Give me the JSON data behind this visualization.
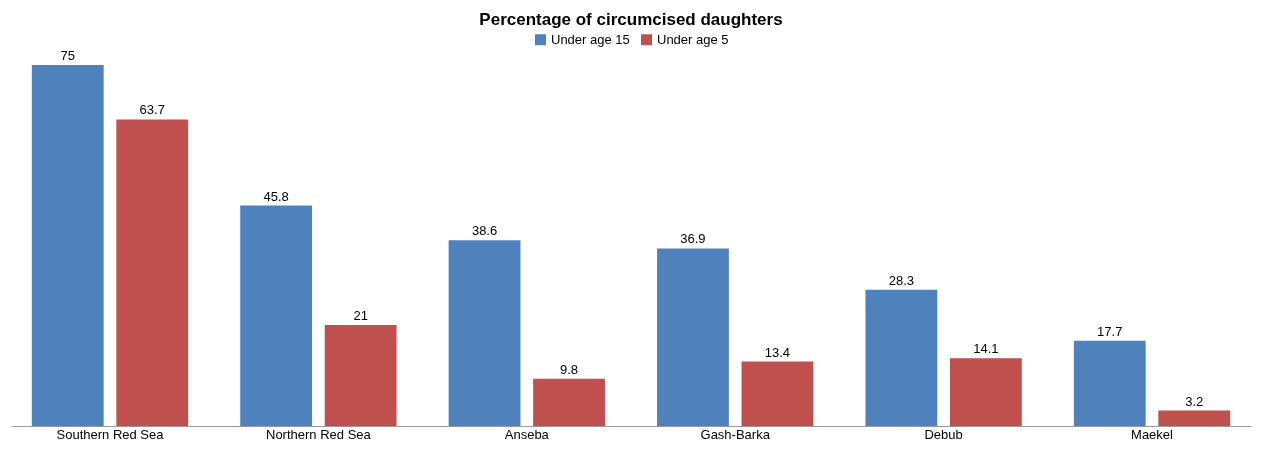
{
  "chart_data": {
    "type": "bar",
    "title": "Percentage of circumcised daughters",
    "categories": [
      "Southern Red Sea",
      "Northern Red Sea",
      "Anseba",
      "Gash-Barka",
      "Debub",
      "Maekel"
    ],
    "series": [
      {
        "name": "Under age 15",
        "color": "#4f81bd",
        "values": [
          75,
          45.8,
          38.6,
          36.9,
          28.3,
          17.7
        ]
      },
      {
        "name": "Under age 5",
        "color": "#c0504d",
        "values": [
          63.7,
          21,
          9.8,
          13.4,
          14.1,
          3.2
        ]
      }
    ],
    "data_labels": true,
    "legend": "top",
    "tick_labels": "x"
  }
}
